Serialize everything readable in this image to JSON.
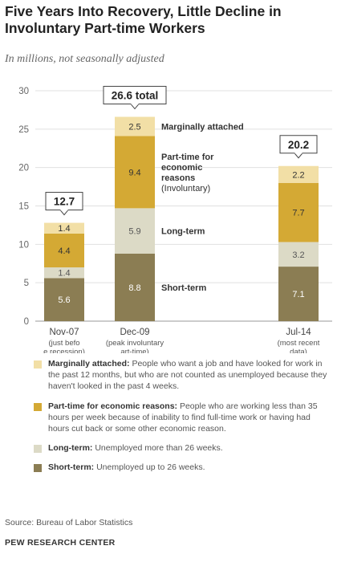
{
  "header": {
    "title": "Five Years Into Recovery, Little Decline in Involuntary Part-time Workers",
    "subtitle": "In millions, not seasonally adjusted"
  },
  "chart_data": {
    "type": "bar",
    "stacked": true,
    "ylim": [
      0,
      30
    ],
    "yticks": [
      0,
      5,
      10,
      15,
      20,
      25,
      30
    ],
    "grid": true,
    "categories": [
      {
        "label": "Nov-07",
        "note": "(just before recession)"
      },
      {
        "label": "Dec-09",
        "note": "(peak involuntary part-time)"
      },
      {
        "label": "Jul-14",
        "note": "(most recent data)"
      }
    ],
    "series": [
      {
        "key": "short",
        "name": "Short-term",
        "color": "#8b7d53",
        "label_color": "#ffffff",
        "values": [
          5.6,
          8.8,
          7.1
        ]
      },
      {
        "key": "long",
        "name": "Long-term",
        "color": "#dcdac6",
        "label_color": "#555555",
        "values": [
          1.4,
          5.9,
          3.2
        ]
      },
      {
        "key": "parttime",
        "name": "Part-time for economic reasons",
        "color": "#d4a934",
        "label_color": "#333333",
        "values": [
          4.4,
          9.4,
          7.7
        ]
      },
      {
        "key": "marginal",
        "name": "Marginally attached",
        "color": "#f2dfa6",
        "label_color": "#333333",
        "values": [
          1.4,
          2.5,
          2.2
        ]
      }
    ],
    "totals": [
      "12.7",
      "26.6 total",
      "20.2"
    ],
    "annotations": {
      "marginal": [
        "Marginally attached"
      ],
      "parttime": [
        "Part-time for",
        "economic",
        "reasons",
        "(Involuntary)"
      ],
      "long": [
        "Long-term"
      ],
      "short": [
        "Short-term"
      ]
    }
  },
  "legend": [
    {
      "color": "#f2dfa6",
      "term": "Marginally attached:",
      "desc": "People who want a job and have looked for work in the past 12 months, but who are not counted as unemployed because they haven't looked in the past 4 weeks."
    },
    {
      "color": "#d4a934",
      "term": "Part-time for economic reasons:",
      "desc": "People who are working less than 35 hours per week because of inability to find full-time work or having had hours cut back or some other economic reason."
    },
    {
      "color": "#dcdac6",
      "term": "Long-term:",
      "desc": "Unemployed more than 26 weeks."
    },
    {
      "color": "#8b7d53",
      "term": "Short-term:",
      "desc": "Unemployed up to 26 weeks."
    }
  ],
  "footer": {
    "source": "Source: Bureau of Labor Statistics",
    "org": "PEW RESEARCH CENTER"
  }
}
